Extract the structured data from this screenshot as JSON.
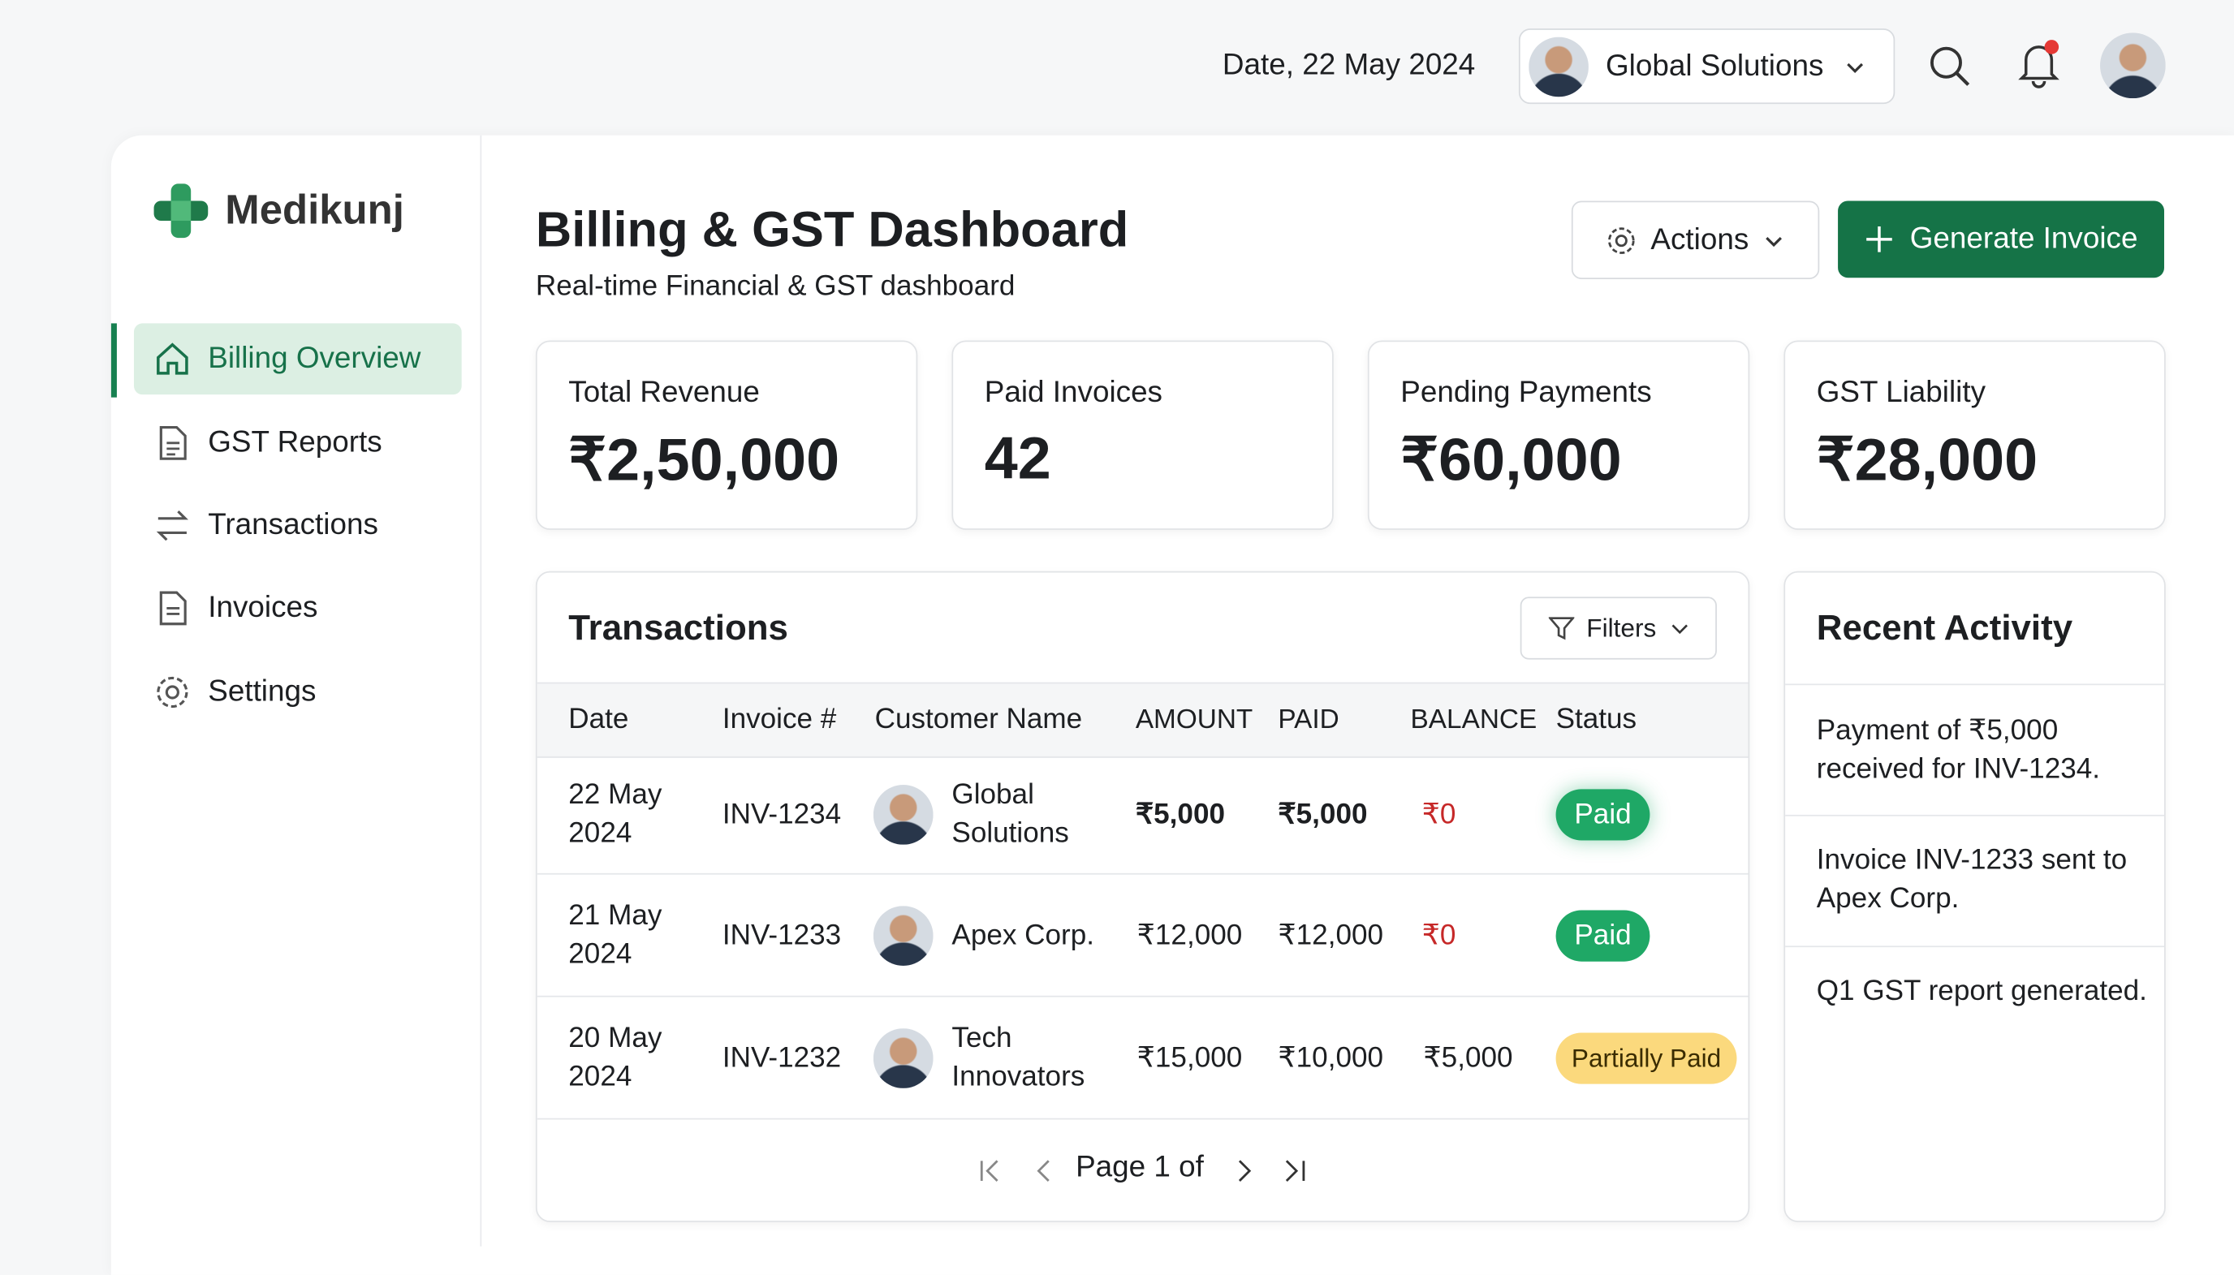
{
  "header": {
    "date": "Date, 22 May 2024",
    "company": "Global Solutions"
  },
  "sidebar": {
    "brand": "Medikunj",
    "nav": [
      "Billing Overview",
      "GST Reports",
      "Transactions",
      "Invoices",
      "Settings"
    ]
  },
  "page": {
    "title": "Billing & GST Dashboard",
    "subtitle": "Real-time Financial & GST dashboard",
    "actions": "Actions",
    "primary": "Generate Invoice"
  },
  "kpis": [
    {
      "label": "Total Revenue",
      "value": "₹2,50,000"
    },
    {
      "label": "Paid Invoices",
      "value": "42"
    },
    {
      "label": "Pending Payments",
      "value": "₹60,000"
    },
    {
      "label": "GST Liability",
      "value": "₹28,000"
    }
  ],
  "transactions": {
    "title": "Transactions",
    "filters": "Filters",
    "columns": [
      "Date",
      "Invoice #",
      "Customer Name",
      "AMOUNT",
      "PAID",
      "BALANCE",
      "Status"
    ],
    "rows": [
      [
        "22 May 2024",
        "INV-1234",
        "Global Solutions",
        "₹5,000",
        "₹5,000",
        "₹0",
        "Paid"
      ],
      [
        "21 May 2024",
        "INV-1233",
        "Apex Corp.",
        "₹12,000",
        "₹12,000",
        "₹0",
        "Paid"
      ],
      [
        "20 May 2024",
        "INV-1232",
        "Tech Innovators",
        "₹15,000",
        "₹10,000",
        "₹5,000",
        "Partially Paid"
      ]
    ],
    "pagination": "Page 1 of"
  },
  "activity": {
    "title": "Recent Activity",
    "items": [
      "Payment of ₹5,000 received for INV-1234.",
      "Invoice INV-1233 sent to Apex Corp.",
      "Q1 GST report generated."
    ]
  }
}
